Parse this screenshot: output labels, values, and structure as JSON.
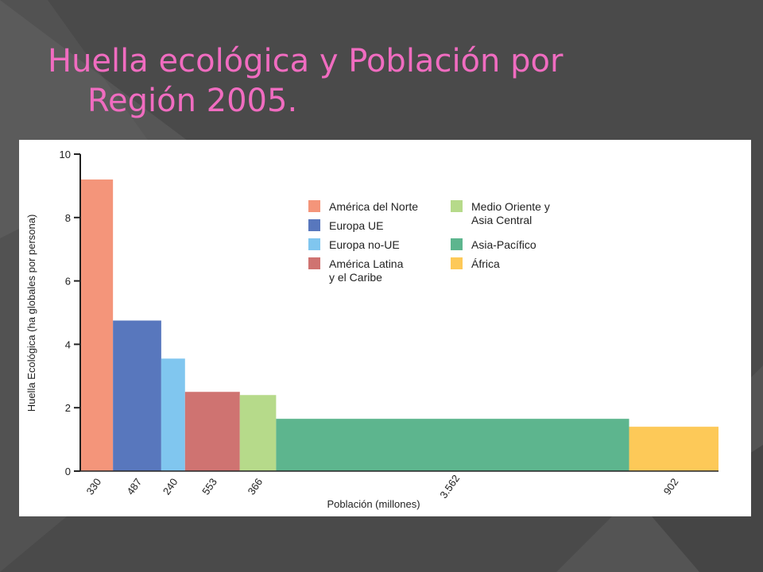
{
  "slide": {
    "title_line1": "Huella ecológica y Población por",
    "title_line2": "Región 2005."
  },
  "colors": {
    "background": "#4a4a4a",
    "title": "#f06cc0"
  },
  "chart_data": {
    "type": "bar",
    "variable_width": true,
    "xlabel": "Población (millones)",
    "ylabel": "Huella Ecológica (ha globales por persona)",
    "ylim": [
      0,
      10
    ],
    "yticks": [
      "0",
      "2",
      "4",
      "6",
      "8",
      "10"
    ],
    "grid": false,
    "legend_placement": "top-center",
    "series": [
      {
        "name": "América del Norte",
        "population": 330,
        "population_label": "330",
        "value": 9.2,
        "color": "#f4957a"
      },
      {
        "name": "Europa UE",
        "population": 487,
        "population_label": "487",
        "value": 4.75,
        "color": "#5877bd"
      },
      {
        "name": "Europa no-UE",
        "population": 240,
        "population_label": "240",
        "value": 3.55,
        "color": "#80c6ef"
      },
      {
        "name": "América Latina y el Caribe",
        "population": 553,
        "population_label": "553",
        "value": 2.5,
        "color": "#cf7371"
      },
      {
        "name": "Medio Oriente y Asia Central",
        "population": 366,
        "population_label": "366",
        "value": 2.4,
        "color": "#b6da8a"
      },
      {
        "name": "Asia-Pacífico",
        "population": 3562,
        "population_label": "3.562",
        "value": 1.65,
        "color": "#5db58e"
      },
      {
        "name": "África",
        "population": 902,
        "population_label": "902",
        "value": 1.4,
        "color": "#fdc958"
      }
    ],
    "legend": {
      "col1": [
        {
          "lines": [
            "América del Norte"
          ],
          "color": "#f4957a"
        },
        {
          "lines": [
            "Europa UE"
          ],
          "color": "#5877bd"
        },
        {
          "lines": [
            "Europa no-UE"
          ],
          "color": "#80c6ef"
        },
        {
          "lines": [
            "América Latina",
            "y el Caribe"
          ],
          "color": "#cf7371"
        }
      ],
      "col2": [
        {
          "lines": [
            "Medio Oriente y",
            "Asia Central"
          ],
          "color": "#b6da8a"
        },
        {
          "lines": [
            "Asia-Pacífico"
          ],
          "color": "#5db58e"
        },
        {
          "lines": [
            "África"
          ],
          "color": "#fdc958"
        }
      ]
    }
  }
}
